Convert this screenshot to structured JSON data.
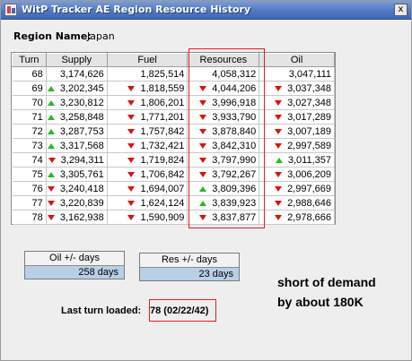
{
  "window": {
    "title": "WitP Tracker AE Region Resource History",
    "close_glyph": "x"
  },
  "region": {
    "label": "Region Name:",
    "value": "Japan"
  },
  "table": {
    "columns": [
      "Turn",
      "Supply",
      "Fuel",
      "Resources",
      "Oil"
    ],
    "rows": [
      {
        "turn": "68",
        "supply": "3,174,626",
        "supply_trend": "none",
        "fuel": "1,825,514",
        "fuel_trend": "none",
        "resources": "4,058,312",
        "resources_trend": "none",
        "oil": "3,047,111",
        "oil_trend": "none"
      },
      {
        "turn": "69",
        "supply": "3,202,345",
        "supply_trend": "up",
        "fuel": "1,818,559",
        "fuel_trend": "down",
        "resources": "4,044,206",
        "resources_trend": "down",
        "oil": "3,037,348",
        "oil_trend": "down"
      },
      {
        "turn": "70",
        "supply": "3,230,812",
        "supply_trend": "up",
        "fuel": "1,806,201",
        "fuel_trend": "down",
        "resources": "3,996,918",
        "resources_trend": "down",
        "oil": "3,027,348",
        "oil_trend": "down"
      },
      {
        "turn": "71",
        "supply": "3,258,848",
        "supply_trend": "up",
        "fuel": "1,771,201",
        "fuel_trend": "down",
        "resources": "3,933,790",
        "resources_trend": "down",
        "oil": "3,017,289",
        "oil_trend": "down"
      },
      {
        "turn": "72",
        "supply": "3,287,753",
        "supply_trend": "up",
        "fuel": "1,757,842",
        "fuel_trend": "down",
        "resources": "3,878,840",
        "resources_trend": "down",
        "oil": "3,007,189",
        "oil_trend": "down"
      },
      {
        "turn": "73",
        "supply": "3,317,568",
        "supply_trend": "up",
        "fuel": "1,732,421",
        "fuel_trend": "down",
        "resources": "3,842,310",
        "resources_trend": "down",
        "oil": "2,997,589",
        "oil_trend": "down"
      },
      {
        "turn": "74",
        "supply": "3,294,311",
        "supply_trend": "down",
        "fuel": "1,719,824",
        "fuel_trend": "down",
        "resources": "3,797,990",
        "resources_trend": "down",
        "oil": "3,011,357",
        "oil_trend": "up"
      },
      {
        "turn": "75",
        "supply": "3,305,761",
        "supply_trend": "up",
        "fuel": "1,706,842",
        "fuel_trend": "down",
        "resources": "3,792,267",
        "resources_trend": "down",
        "oil": "3,006,209",
        "oil_trend": "down"
      },
      {
        "turn": "76",
        "supply": "3,240,418",
        "supply_trend": "down",
        "fuel": "1,694,007",
        "fuel_trend": "down",
        "resources": "3,809,396",
        "resources_trend": "up",
        "oil": "2,997,669",
        "oil_trend": "down"
      },
      {
        "turn": "77",
        "supply": "3,220,839",
        "supply_trend": "down",
        "fuel": "1,624,124",
        "fuel_trend": "down",
        "resources": "3,839,923",
        "resources_trend": "up",
        "oil": "2,988,646",
        "oil_trend": "down"
      },
      {
        "turn": "78",
        "supply": "3,162,938",
        "supply_trend": "down",
        "fuel": "1,590,909",
        "fuel_trend": "down",
        "resources": "3,837,877",
        "resources_trend": "down",
        "oil": "2,978,666",
        "oil_trend": "down"
      }
    ]
  },
  "oil_days": {
    "label": "Oil +/- days",
    "value": "258 days"
  },
  "res_days": {
    "label": "Res +/- days",
    "value": "23 days"
  },
  "annotation": {
    "line1": "short of demand",
    "line2": "by about 180K"
  },
  "last_turn": {
    "label": "Last turn loaded:",
    "value": "78 (02/22/42)"
  },
  "colors": {
    "up_arrow": "#22bb22",
    "down_arrow": "#dd1111",
    "highlight_box": "#e02020",
    "title_bar": "#5178c4"
  },
  "icons": {
    "app": "app-icon",
    "close": "close-icon",
    "up": "up-arrow-icon",
    "down": "down-arrow-icon"
  }
}
